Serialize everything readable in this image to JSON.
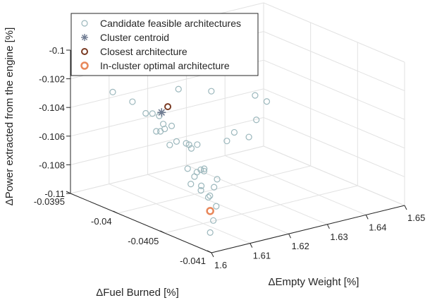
{
  "chart_data": {
    "type": "scatter",
    "title": "",
    "grid": true,
    "legend": {
      "placement": "top-left",
      "entries": [
        {
          "label": "Candidate feasible architectures",
          "marker": "circle-open",
          "color": "#9bb7bc"
        },
        {
          "label": "Cluster centroid",
          "marker": "asterisk",
          "color": "#6e7b91"
        },
        {
          "label": "Closest architecture",
          "marker": "circle-open",
          "color": "#7a3b24"
        },
        {
          "label": "In-cluster optimal architecture",
          "marker": "circle-open-thick",
          "color": "#e8875a"
        }
      ]
    },
    "axes": {
      "x": {
        "label": "ΔEmpty Weight [%]",
        "lim": [
          1.6,
          1.65
        ],
        "ticks": [
          1.6,
          1.61,
          1.62,
          1.63,
          1.64,
          1.65
        ],
        "tick_labels": [
          "1.6",
          "1.61",
          "1.62",
          "1.63",
          "1.64",
          "1.65"
        ]
      },
      "y": {
        "label": "ΔFuel Burned [%]",
        "lim": [
          -0.041,
          -0.0395
        ],
        "ticks": [
          -0.041,
          -0.0405,
          -0.04,
          -0.0395
        ],
        "tick_labels": [
          "-0.041",
          "-0.0405",
          "-0.04",
          "-0.0395"
        ]
      },
      "z": {
        "label": "ΔPower extracted from the engine [%]",
        "lim": [
          -0.11,
          -0.1
        ],
        "ticks": [
          -0.11,
          -0.108,
          -0.106,
          -0.104,
          -0.102,
          -0.1
        ],
        "tick_labels": [
          "-0.11",
          "-0.108",
          "-0.106",
          "-0.104",
          "-0.102",
          "-0.1"
        ]
      }
    },
    "series": [
      {
        "name": "Candidate feasible architectures",
        "points": [
          [
            1.6029,
            -0.04004,
            -0.1023
          ],
          [
            1.6026,
            -0.04038,
            -0.1029
          ],
          [
            1.609,
            -0.03958,
            -0.1033
          ],
          [
            1.6079,
            -0.04012,
            -0.1034
          ],
          [
            1.6021,
            -0.0408,
            -0.1049
          ],
          [
            1.6077,
            -0.04026,
            -0.1037
          ],
          [
            1.6049,
            -0.04056,
            -0.104
          ],
          [
            1.6011,
            -0.0408,
            -0.105
          ],
          [
            1.6012,
            -0.04077,
            -0.1054
          ],
          [
            1.6081,
            -0.04008,
            -0.1046
          ],
          [
            1.6058,
            -0.04039,
            -0.1043
          ],
          [
            1.6005,
            -0.04076,
            -0.1059
          ],
          [
            1.6014,
            -0.04097,
            -0.1056
          ],
          [
            1.6043,
            -0.04057,
            -0.1056
          ],
          [
            1.6061,
            -0.04048,
            -0.1042
          ],
          [
            1.6055,
            -0.04056,
            -0.1043
          ],
          [
            1.6093,
            -0.04012,
            -0.1044
          ],
          [
            1.6049,
            -0.04072,
            -0.1054
          ],
          [
            1.6022,
            -0.04097,
            -0.1051
          ],
          [
            1.6117,
            -0.03982,
            -0.1043
          ],
          [
            1.6099,
            -0.04005,
            -0.1048
          ],
          [
            1.6063,
            -0.04059,
            -0.104
          ],
          [
            1.6013,
            -0.04093,
            -0.1063
          ],
          [
            1.6036,
            -0.04074,
            -0.1066
          ],
          [
            1.6021,
            -0.04088,
            -0.1066
          ],
          [
            1.6054,
            -0.04067,
            -0.1066
          ],
          [
            1.6004,
            -0.04097,
            -0.1087
          ],
          [
            1.6128,
            -0.04003,
            -0.106
          ],
          [
            1.6064,
            -0.04066,
            -0.1055
          ],
          [
            1.6027,
            -0.04094,
            -0.1071
          ],
          [
            1.6017,
            -0.04095,
            -0.108
          ],
          [
            1.6166,
            -0.03969,
            -0.105
          ],
          [
            1.6248,
            -0.03963,
            -0.104
          ],
          [
            1.6316,
            -0.0397,
            -0.1044
          ],
          [
            1.6349,
            -0.04003,
            -0.104
          ],
          [
            1.635,
            -0.04015,
            -0.1041
          ],
          [
            1.6237,
            -0.04019,
            -0.106
          ],
          [
            1.6294,
            -0.04019,
            -0.1061
          ],
          [
            1.6306,
            -0.04022,
            -0.1049
          ],
          [
            1.6227,
            -0.04031,
            -0.105
          ]
        ]
      },
      {
        "name": "Cluster centroid",
        "points": [
          [
            1.6141,
            -0.03989,
            -0.1042
          ]
        ]
      },
      {
        "name": "Closest architecture",
        "points": [
          [
            1.614,
            -0.03996,
            -0.1036
          ]
        ]
      },
      {
        "name": "In-cluster optimal architecture",
        "points": [
          [
            1.6021,
            -0.0409,
            -0.1075
          ]
        ]
      }
    ]
  }
}
